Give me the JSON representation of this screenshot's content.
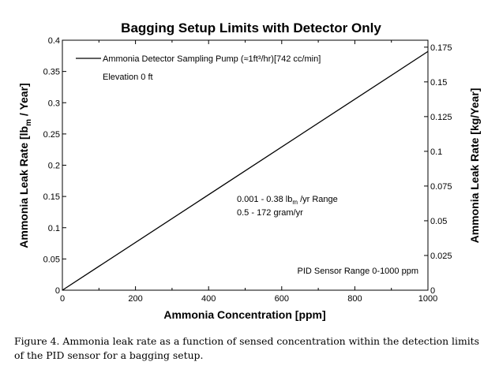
{
  "chart_data": {
    "type": "line",
    "title": "Bagging Setup Limits with Detector Only",
    "xlabel": "Ammonia Concentration [ppm]",
    "ylabel_left": {
      "main": "Ammonia Leak Rate [lb",
      "sub": "m",
      "tail": " / Year]"
    },
    "ylabel_right": "Ammonia Leak Rate [kg/Year]",
    "xlim": [
      0,
      1000
    ],
    "ylim_left": [
      0,
      0.4
    ],
    "ylim_right": [
      0,
      0.18
    ],
    "x_ticks": [
      0,
      200,
      400,
      600,
      800,
      1000
    ],
    "x_tick_labels": [
      "0",
      "200",
      "400",
      "600",
      "800",
      "1000"
    ],
    "y_left_ticks": [
      0,
      0.05,
      0.1,
      0.15,
      0.2,
      0.25,
      0.3,
      0.35,
      0.4
    ],
    "y_left_tick_labels": [
      "0",
      "0.05",
      "0.1",
      "0.15",
      "0.2",
      "0.25",
      "0.3",
      "0.35",
      "0.4"
    ],
    "y_right_ticks": [
      0,
      0.025,
      0.05,
      0.075,
      0.1,
      0.125,
      0.15,
      0.175
    ],
    "y_right_tick_labels": [
      "0",
      "0.025",
      "0.05",
      "0.075",
      "0.1",
      "0.125",
      "0.15",
      "0.175"
    ],
    "grid": false,
    "legend_position": "top-left",
    "series": [
      {
        "name": "Ammonia Detector Sampling Pump (≈1ft³/hr)[742 cc/min]",
        "x": [
          0,
          1000
        ],
        "y": [
          0,
          0.382
        ],
        "color": "#000000"
      }
    ],
    "annotations": {
      "elevation": "Elevation 0 ft",
      "range_lb": {
        "pre": "0.001 - 0.38 lb",
        "sub": "m",
        "post": " /yr Range"
      },
      "range_gram": "0.5 - 172 gram/yr",
      "pid_range": "PID Sensor Range 0-1000 ppm"
    }
  },
  "caption": {
    "line1": "Figure 4. Ammonia leak rate as a function of sensed concentration within the detection limits",
    "line2": "of the PID sensor for a bagging setup."
  }
}
